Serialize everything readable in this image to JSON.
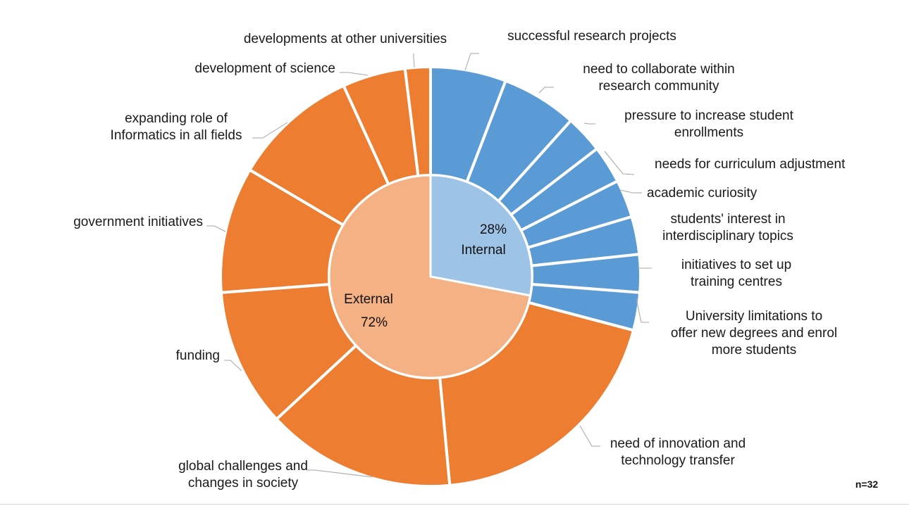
{
  "chart_data": {
    "type": "donut",
    "note": "n=32",
    "inner_ring": [
      {
        "label": "Internal",
        "percent_text": "28%",
        "value": 28,
        "color": "#9dc3e6"
      },
      {
        "label": "External",
        "percent_text": "72%",
        "value": 72,
        "color": "#f4b183"
      }
    ],
    "outer_ring": [
      {
        "label": "successful research projects",
        "value": 6,
        "group": "Internal",
        "color": "#5b9bd5"
      },
      {
        "label": "need to collaborate within research community",
        "value": 6,
        "group": "Internal",
        "color": "#5b9bd5"
      },
      {
        "label": "pressure to increase student enrollments",
        "value": 3,
        "group": "Internal",
        "color": "#5b9bd5"
      },
      {
        "label": "needs for curriculum adjustment",
        "value": 3,
        "group": "Internal",
        "color": "#5b9bd5"
      },
      {
        "label": "academic curiosity",
        "value": 3,
        "group": "Internal",
        "color": "#5b9bd5"
      },
      {
        "label": "students' interest in interdisciplinary topics",
        "value": 3,
        "group": "Internal",
        "color": "#5b9bd5"
      },
      {
        "label": "initiatives to set up training centres",
        "value": 3,
        "group": "Internal",
        "color": "#5b9bd5"
      },
      {
        "label": "University limitations to offer new degrees and enrol more students",
        "value": 3,
        "group": "Internal",
        "color": "#5b9bd5"
      },
      {
        "label": "need of innovation and technology transfer",
        "value": 20,
        "group": "External",
        "color": "#ed7d31"
      },
      {
        "label": "global challenges and changes in society",
        "value": 15,
        "group": "External",
        "color": "#ed7d31"
      },
      {
        "label": "funding",
        "value": 11,
        "group": "External",
        "color": "#ed7d31"
      },
      {
        "label": "government initiatives",
        "value": 10,
        "group": "External",
        "color": "#ed7d31"
      },
      {
        "label": "expanding role of Informatics in all fields",
        "value": 10,
        "group": "External",
        "color": "#ed7d31"
      },
      {
        "label": "development of science",
        "value": 5,
        "group": "External",
        "color": "#ed7d31"
      },
      {
        "label": "developments at other universities",
        "value": 2,
        "group": "External",
        "color": "#ed7d31"
      }
    ]
  }
}
